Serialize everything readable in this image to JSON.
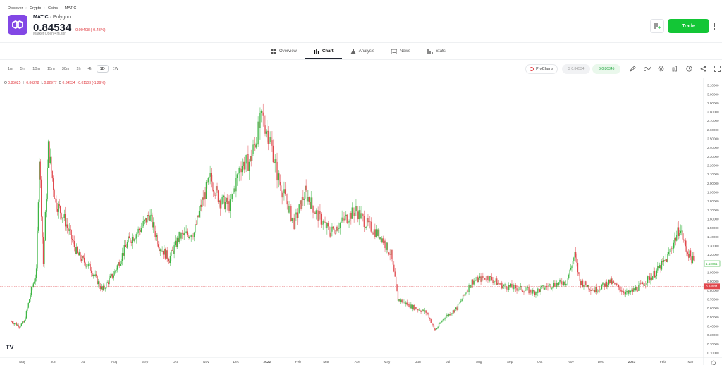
{
  "breadcrumb": [
    "Discover",
    "Crypto",
    "Coins",
    "MATIC"
  ],
  "asset": {
    "symbol": "MATIC",
    "name": "Polygon",
    "price": "0.84534",
    "change": "-0.00408 (-0.48%)",
    "market_status": "Market Open",
    "market_suffix": "m.sbr"
  },
  "actions": {
    "trade_label": "Trade"
  },
  "tabs": [
    {
      "label": "Overview",
      "icon": "overview-icon"
    },
    {
      "label": "Chart",
      "icon": "chart-icon",
      "active": true
    },
    {
      "label": "Analysis",
      "icon": "analysis-icon"
    },
    {
      "label": "News",
      "icon": "news-icon"
    },
    {
      "label": "Stats",
      "icon": "stats-icon"
    }
  ],
  "intervals": [
    "1m",
    "5m",
    "10m",
    "15m",
    "30m",
    "1h",
    "4h",
    "1D",
    "1W"
  ],
  "selected_interval": "1D",
  "toolbar": {
    "procharts_label": "ProCharts",
    "sell_label": "S 0.84534",
    "buy_label": "B 0.86345"
  },
  "ohlc": {
    "o_label": "O",
    "o": "0.85625",
    "h_label": "H",
    "h": "0.86278",
    "l_label": "L",
    "l": "0.82977",
    "c_label": "C",
    "c": "0.84534",
    "chg": "-0.01103 (-1.29%)"
  },
  "chart_data": {
    "type": "candlestick",
    "y_ticks": [
      "3.10000",
      "3.00000",
      "2.90000",
      "2.80000",
      "2.70000",
      "2.60000",
      "2.50000",
      "2.40000",
      "2.30000",
      "2.20000",
      "2.10000",
      "2.00000",
      "1.90000",
      "1.80000",
      "1.70000",
      "1.60000",
      "1.50000",
      "1.40000",
      "1.30000",
      "1.20000",
      "1.10000",
      "1.00000",
      "0.90000",
      "0.80000",
      "0.70000",
      "0.60000",
      "0.50000",
      "0.40000",
      "0.30000",
      "0.20000",
      "0.10000"
    ],
    "ylim": [
      0.05,
      3.13
    ],
    "x_ticks": [
      "May",
      "Jun",
      "Jul",
      "Aug",
      "Sep",
      "Oct",
      "Nov",
      "Dec",
      "2022",
      "Feb",
      "Mar",
      "Apr",
      "May",
      "Jun",
      "Jul",
      "Aug",
      "Sep",
      "Oct",
      "Nov",
      "Dec",
      "2023",
      "Feb",
      "Mar"
    ],
    "current_price_label": "0.84534",
    "buy_price_label": "1.10061",
    "current_price": 0.845,
    "buy_price": 1.1,
    "series": [
      {
        "x": "2021-04-20",
        "close": 0.45
      },
      {
        "x": "2021-04-28",
        "close": 0.4
      },
      {
        "x": "2021-05-03",
        "close": 0.45
      },
      {
        "x": "2021-05-10",
        "close": 0.8
      },
      {
        "x": "2021-05-15",
        "close": 1.0
      },
      {
        "x": "2021-05-18",
        "close": 2.3
      },
      {
        "x": "2021-05-22",
        "close": 1.1
      },
      {
        "x": "2021-05-27",
        "close": 2.4
      },
      {
        "x": "2021-06-03",
        "close": 1.8
      },
      {
        "x": "2021-06-12",
        "close": 1.6
      },
      {
        "x": "2021-06-25",
        "close": 1.2
      },
      {
        "x": "2021-07-08",
        "close": 1.05
      },
      {
        "x": "2021-07-20",
        "close": 0.8
      },
      {
        "x": "2021-08-01",
        "close": 1.0
      },
      {
        "x": "2021-08-15",
        "close": 1.35
      },
      {
        "x": "2021-08-28",
        "close": 1.5
      },
      {
        "x": "2021-09-05",
        "close": 1.65
      },
      {
        "x": "2021-09-15",
        "close": 1.3
      },
      {
        "x": "2021-09-25",
        "close": 1.15
      },
      {
        "x": "2021-10-05",
        "close": 1.4
      },
      {
        "x": "2021-10-20",
        "close": 1.45
      },
      {
        "x": "2021-10-28",
        "close": 1.8
      },
      {
        "x": "2021-11-05",
        "close": 2.05
      },
      {
        "x": "2021-11-15",
        "close": 1.8
      },
      {
        "x": "2021-11-25",
        "close": 1.75
      },
      {
        "x": "2021-12-05",
        "close": 2.2
      },
      {
        "x": "2021-12-15",
        "close": 2.25
      },
      {
        "x": "2021-12-27",
        "close": 2.75
      },
      {
        "x": "2022-01-05",
        "close": 2.45
      },
      {
        "x": "2022-01-12",
        "close": 2.05
      },
      {
        "x": "2022-01-20",
        "close": 1.8
      },
      {
        "x": "2022-01-28",
        "close": 1.55
      },
      {
        "x": "2022-02-08",
        "close": 1.9
      },
      {
        "x": "2022-02-20",
        "close": 1.65
      },
      {
        "x": "2022-03-05",
        "close": 1.45
      },
      {
        "x": "2022-03-20",
        "close": 1.6
      },
      {
        "x": "2022-03-31",
        "close": 1.7
      },
      {
        "x": "2022-04-10",
        "close": 1.55
      },
      {
        "x": "2022-04-25",
        "close": 1.4
      },
      {
        "x": "2022-05-05",
        "close": 1.2
      },
      {
        "x": "2022-05-12",
        "close": 0.7
      },
      {
        "x": "2022-05-25",
        "close": 0.62
      },
      {
        "x": "2022-06-10",
        "close": 0.55
      },
      {
        "x": "2022-06-18",
        "close": 0.35
      },
      {
        "x": "2022-06-28",
        "close": 0.5
      },
      {
        "x": "2022-07-10",
        "close": 0.6
      },
      {
        "x": "2022-07-25",
        "close": 0.9
      },
      {
        "x": "2022-08-10",
        "close": 0.95
      },
      {
        "x": "2022-08-25",
        "close": 0.85
      },
      {
        "x": "2022-09-10",
        "close": 0.82
      },
      {
        "x": "2022-09-25",
        "close": 0.78
      },
      {
        "x": "2022-10-10",
        "close": 0.85
      },
      {
        "x": "2022-10-28",
        "close": 0.9
      },
      {
        "x": "2022-11-05",
        "close": 1.2
      },
      {
        "x": "2022-11-10",
        "close": 0.9
      },
      {
        "x": "2022-11-25",
        "close": 0.8
      },
      {
        "x": "2022-12-10",
        "close": 0.9
      },
      {
        "x": "2022-12-28",
        "close": 0.76
      },
      {
        "x": "2023-01-10",
        "close": 0.85
      },
      {
        "x": "2023-01-25",
        "close": 1.0
      },
      {
        "x": "2023-02-05",
        "close": 1.15
      },
      {
        "x": "2023-02-18",
        "close": 1.5
      },
      {
        "x": "2023-02-25",
        "close": 1.25
      },
      {
        "x": "2023-03-05",
        "close": 1.1
      }
    ]
  }
}
